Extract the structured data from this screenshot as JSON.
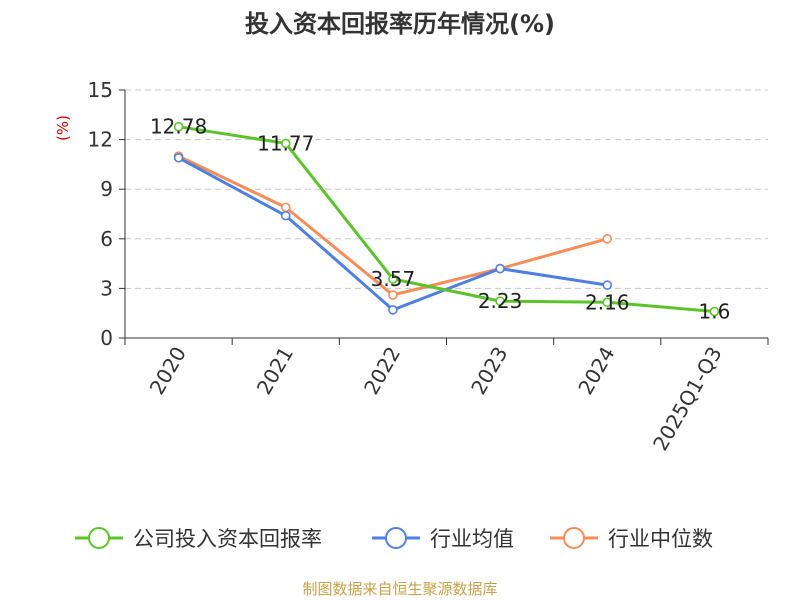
{
  "chart_data": {
    "type": "line",
    "title": "投入资本回报率历年情况(%)",
    "ylabel": "(%)",
    "xlabel": "",
    "categories": [
      "2020",
      "2021",
      "2022",
      "2023",
      "2024",
      "2025Q1-Q3"
    ],
    "ylim": [
      0,
      15
    ],
    "yticks": [
      0,
      3,
      6,
      9,
      12,
      15
    ],
    "grid": true,
    "legend_position": "bottom",
    "series": [
      {
        "name": "公司投入资本回报率",
        "color": "#5cc42a",
        "values": [
          12.78,
          11.77,
          3.57,
          2.23,
          2.16,
          1.6
        ],
        "labels": [
          "12.78",
          "11.77",
          "3.57",
          "2.23",
          "2.16",
          "1.6"
        ]
      },
      {
        "name": "行业均值",
        "color": "#4f7fe0",
        "values": [
          10.9,
          7.4,
          1.7,
          4.2,
          3.2,
          null
        ]
      },
      {
        "name": "行业中位数",
        "color": "#f58d59",
        "values": [
          11.0,
          7.9,
          2.6,
          4.2,
          6.0,
          null
        ]
      }
    ]
  },
  "footer": {
    "source": "制图数据来自恒生聚源数据库"
  }
}
